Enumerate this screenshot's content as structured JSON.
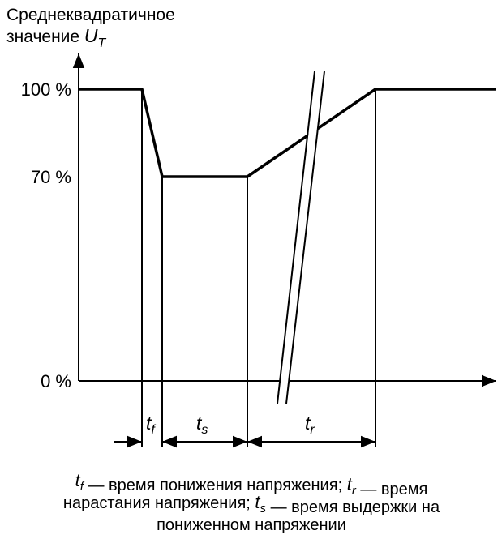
{
  "axis_label": {
    "line1": "Среднеквадратичное",
    "line2": "значение",
    "symbol": "U",
    "subscript": "T"
  },
  "levels": [
    "100 %",
    "70 %",
    "0 %"
  ],
  "intervals": [
    {
      "symbol": "t",
      "subscript": "f"
    },
    {
      "symbol": "t",
      "subscript": "s"
    },
    {
      "symbol": "t",
      "subscript": "r"
    }
  ],
  "caption": [
    [
      {
        "symbol": "t",
        "subscript": "f"
      },
      {
        "text": " — время понижения напряжения; "
      },
      {
        "symbol": "t",
        "subscript": "r"
      },
      {
        "text": " — время"
      }
    ],
    [
      {
        "text": "нарастания напряжения; "
      },
      {
        "symbol": "t",
        "subscript": "s"
      },
      {
        "text": " — время выдержки на"
      }
    ],
    [
      {
        "text": "пониженном напряжении"
      }
    ]
  ]
}
